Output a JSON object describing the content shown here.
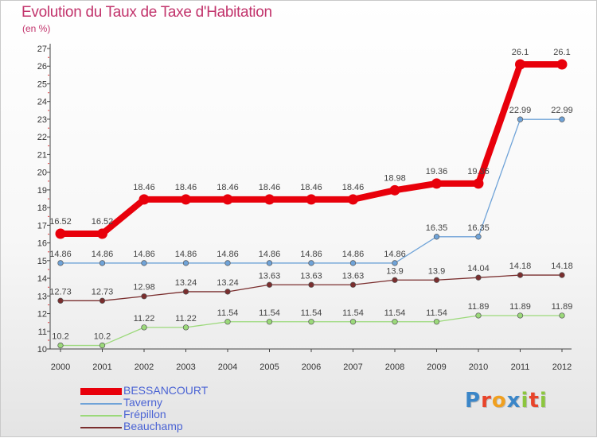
{
  "title": "Evolution du Taux de Taxe d'Habitation",
  "unit": "(en %)",
  "logo": {
    "text": "Proxiti",
    "letter_colors": [
      "#3b86c8",
      "#e8442a",
      "#f0a020",
      "#3b86c8",
      "#8cc63e",
      "#e8442a",
      "#8cc63e"
    ]
  },
  "chart_data": {
    "type": "line",
    "title": "Evolution du Taux de Taxe d'Habitation",
    "ylabel": "(en %)",
    "xlabel": "",
    "x": [
      "2000",
      "2001",
      "2002",
      "2003",
      "2004",
      "2005",
      "2006",
      "2007",
      "2008",
      "2009",
      "2010",
      "2011",
      "2012"
    ],
    "ylim": [
      10,
      27
    ],
    "yticks": [
      "10",
      "11",
      "12",
      "13",
      "14",
      "15",
      "16",
      "17",
      "18",
      "19",
      "20",
      "21",
      "22",
      "23",
      "24",
      "25",
      "26",
      "27"
    ],
    "grid": false,
    "legend_position": "bottom-left",
    "series": [
      {
        "name": "BESSANCOURT",
        "color": "#e8000b",
        "values": [
          16.52,
          16.52,
          18.46,
          18.46,
          18.46,
          18.46,
          18.46,
          18.46,
          18.98,
          19.36,
          19.36,
          26.1,
          26.1
        ],
        "labels": [
          "16.52",
          "16.52",
          "18.46",
          "18.46",
          "18.46",
          "18.46",
          "18.46",
          "18.46",
          "18.98",
          "19.36",
          "19.36",
          "26.1",
          "26.1"
        ]
      },
      {
        "name": "Taverny",
        "color": "#6fa3d8",
        "values": [
          14.86,
          14.86,
          14.86,
          14.86,
          14.86,
          14.86,
          14.86,
          14.86,
          14.86,
          16.35,
          16.35,
          22.99,
          22.99
        ],
        "labels": [
          "14.86",
          "14.86",
          "14.86",
          "14.86",
          "14.86",
          "14.86",
          "14.86",
          "14.86",
          "14.86",
          "16.35",
          "16.35",
          "22.99",
          "22.99"
        ]
      },
      {
        "name": "Frépillon",
        "color": "#9bd97a",
        "values": [
          10.2,
          10.2,
          11.22,
          11.22,
          11.54,
          11.54,
          11.54,
          11.54,
          11.54,
          11.54,
          11.89,
          11.89,
          11.89
        ],
        "labels": [
          "10.2",
          "10.2",
          "11.22",
          "11.22",
          "11.54",
          "11.54",
          "11.54",
          "11.54",
          "11.54",
          "11.54",
          "11.89",
          "11.89",
          "11.89"
        ]
      },
      {
        "name": "Beauchamp",
        "color": "#7a2e2e",
        "values": [
          12.73,
          12.73,
          12.98,
          13.24,
          13.24,
          13.63,
          13.63,
          13.63,
          13.9,
          13.9,
          14.04,
          14.18,
          14.18
        ],
        "labels": [
          "12.73",
          "12.73",
          "12.98",
          "13.24",
          "13.24",
          "13.63",
          "13.63",
          "13.63",
          "13.9",
          "13.9",
          "14.04",
          "14.18",
          "14.18"
        ]
      }
    ]
  }
}
